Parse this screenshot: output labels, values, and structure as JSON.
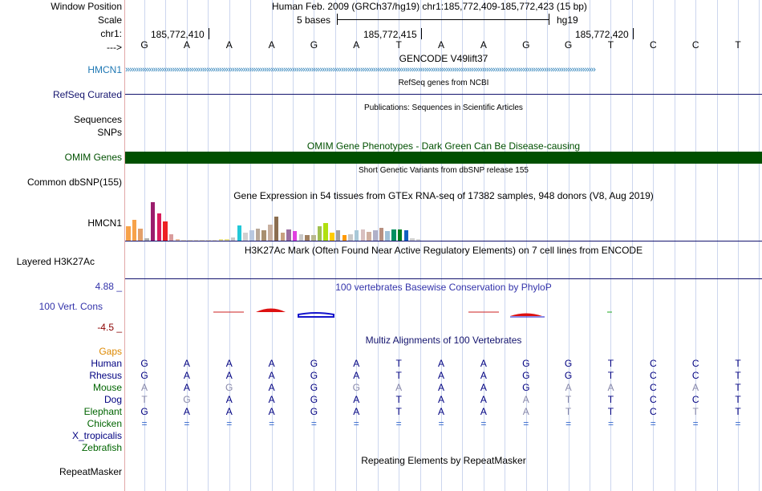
{
  "header": {
    "window_position_label": "Window Position",
    "scale_label": "Scale",
    "chr_label": "chr1:",
    "strand_label": "--->",
    "assembly_title": "Human Feb. 2009 (GRCh37/hg19)   chr1:185,772,409-185,772,423 (15 bp)",
    "scale_text": "5 bases",
    "scale_db": "hg19",
    "positions": [
      "185,772,410",
      "185,772,415",
      "185,772,420"
    ]
  },
  "bases": [
    "G",
    "A",
    "A",
    "A",
    "G",
    "A",
    "T",
    "A",
    "A",
    "G",
    "G",
    "T",
    "C",
    "C",
    "T"
  ],
  "tracks": {
    "hmcn1_label": "HMCN1",
    "gencode_title": "GENCODE V49lift37",
    "refseq_title": "RefSeq genes from NCBI",
    "refseq_label": "RefSeq Curated",
    "publications_title": "Publications: Sequences in Scientific Articles",
    "sequences_label": "Sequences",
    "snps_label": "SNPs",
    "omim_title": "OMIM Gene Phenotypes - Dark Green Can Be Disease-causing",
    "omim_label": "OMIM Genes",
    "dbsnp_title": "Short Genetic Variants from dbSNP release 155",
    "dbsnp_label": "Common dbSNP(155)",
    "gtex_title": "Gene Expression in 54 tissues from GTEx RNA-seq of 17382 samples, 948 donors (V8, Aug 2019)",
    "gtex_label": "HMCN1",
    "h3k27ac_title": "H3K27Ac Mark (Often Found Near Active Regulatory Elements) on 7 cell lines from ENCODE",
    "h3k27ac_label": "Layered H3K27Ac",
    "phylop_title": "100 vertebrates Basewise Conservation by PhyloP",
    "phylop_label": "100 Vert. Cons",
    "phylop_max": "4.88 _",
    "phylop_min": "-4.5 _",
    "multiz_title": "Multiz Alignments of 100 Vertebrates",
    "gaps_label": "Gaps",
    "repeat_title": "Repeating Elements by RepeatMasker",
    "repeat_label": "RepeatMasker"
  },
  "alignment": [
    {
      "species": "Human",
      "seq": "GAAAGATAAGGTCCT",
      "dim": []
    },
    {
      "species": "Rhesus",
      "seq": "GAAAGATAAGGTCCT",
      "dim": []
    },
    {
      "species": "Mouse",
      "seq": "AAGAGGAAAGAACAT",
      "dim": [
        0,
        2,
        5,
        6,
        10,
        11,
        13
      ]
    },
    {
      "species": "Dog",
      "seq": "TGAAGATAAATTCCT",
      "dim": [
        0,
        1,
        9,
        10
      ]
    },
    {
      "species": "Elephant",
      "seq": "GAAAGATAAATTCTT",
      "dim": [
        9,
        10,
        13
      ]
    },
    {
      "species": "Chicken",
      "seq": "===============",
      "dim": []
    },
    {
      "species": "X_tropicalis",
      "seq": "",
      "dim": []
    },
    {
      "species": "Zebrafish",
      "seq": "",
      "dim": []
    }
  ],
  "colors": {
    "gencode_blue": "#1f78b4",
    "refseq_navy": "#14146e",
    "omim_green": "#005000",
    "gaps_orange": "#dd8800",
    "species_navy": "#000080",
    "species_green": "#006400",
    "phylop_red": "#8b0000",
    "phylop_blue": "#3333aa"
  },
  "gtex_colors": [
    "#f7a24a",
    "#f7a24a",
    "#e3a06a",
    "#b0b0b0",
    "#9b1e6d",
    "#d91c5c",
    "#ed2024",
    "#d99c9c",
    "#e8c0a0",
    "#f2e8c8",
    "#f2e8c8",
    "#f2e8c8",
    "#f2e8c8",
    "#f2e8c8",
    "#f2e8c8",
    "#e8e090",
    "#e8e090",
    "#c8c8c8",
    "#22c8d8",
    "#d0d0d0",
    "#b8c8e0",
    "#b8a898",
    "#a89070",
    "#c8b0a0",
    "#8b6e50",
    "#c8a080",
    "#9b6ea0",
    "#e040e0",
    "#c8c8c8",
    "#a08060",
    "#b8b890",
    "#a0c050",
    "#b0e010",
    "#ffcc00",
    "#a0a0a0",
    "#ff9900",
    "#c8c8c8",
    "#a8c8d8",
    "#d8c0c0",
    "#d0b0a0",
    "#b0b0c8",
    "#b89080",
    "#a0c0d8",
    "#009060",
    "#008020",
    "#1060c0",
    "#d0d0d0",
    "#d8d8d8"
  ],
  "gtex_values": [
    0.38,
    0.55,
    0.32,
    0.06,
    1.0,
    0.7,
    0.5,
    0.16,
    0.05,
    0.03,
    0.03,
    0.03,
    0.03,
    0.03,
    0.03,
    0.05,
    0.05,
    0.08,
    0.4,
    0.2,
    0.27,
    0.32,
    0.27,
    0.42,
    0.63,
    0.2,
    0.3,
    0.24,
    0.17,
    0.15,
    0.15,
    0.37,
    0.45,
    0.2,
    0.27,
    0.14,
    0.17,
    0.28,
    0.3,
    0.22,
    0.27,
    0.34,
    0.26,
    0.3,
    0.3,
    0.27,
    0.06,
    0.05
  ]
}
